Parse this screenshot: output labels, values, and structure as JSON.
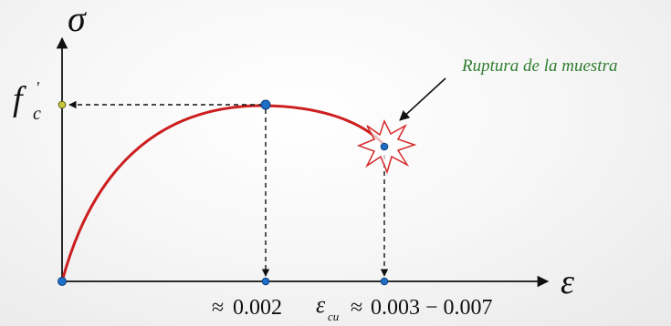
{
  "axes": {
    "y_label": "σ",
    "x_label": "ε"
  },
  "peak_stress": {
    "base": "f",
    "prime": "'",
    "subscript": "c"
  },
  "strain_peak": {
    "approx": "≈",
    "value": "0.002"
  },
  "strain_ultimate": {
    "symbol": "ε",
    "subscript": "cu",
    "approx": "≈",
    "range": "0.003 − 0.007"
  },
  "rupture": {
    "label": "Ruptura de la muestra"
  },
  "colors": {
    "curve": "#cc1f1f",
    "annotation": "#2e7d2e",
    "point": "#1f6fc8",
    "peak_marker": "#c8c83c",
    "axis": "#111111",
    "starburst": "#d42a2a"
  }
}
